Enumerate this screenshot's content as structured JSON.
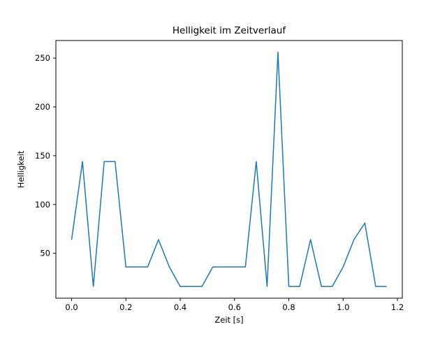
{
  "chart_data": {
    "type": "line",
    "title": "Helligkeit im Zeitverlauf",
    "xlabel": "Zeit [s]",
    "ylabel": "Helligkeit",
    "x": [
      0.0,
      0.04,
      0.08,
      0.12,
      0.16,
      0.2,
      0.24,
      0.28,
      0.32,
      0.36,
      0.4,
      0.44,
      0.48,
      0.52,
      0.56,
      0.6,
      0.64,
      0.68,
      0.72,
      0.76,
      0.8,
      0.84,
      0.88,
      0.92,
      0.96,
      1.0,
      1.04,
      1.08,
      1.12,
      1.16
    ],
    "y": [
      64,
      144,
      16,
      144,
      144,
      36,
      36,
      36,
      64,
      36,
      16,
      16,
      16,
      36,
      36,
      36,
      36,
      144,
      16,
      256,
      16,
      16,
      64,
      16,
      16,
      36,
      64,
      81,
      16,
      16
    ],
    "xticks": [
      0.0,
      0.2,
      0.4,
      0.6,
      0.8,
      1.0,
      1.2
    ],
    "xtick_labels": [
      "0.0",
      "0.2",
      "0.4",
      "0.6",
      "0.8",
      "1.0",
      "1.2"
    ],
    "yticks": [
      50,
      100,
      150,
      200,
      250
    ],
    "ytick_labels": [
      "50",
      "100",
      "150",
      "200",
      "250"
    ],
    "xlim": [
      -0.058,
      1.218
    ],
    "ylim": [
      4,
      268
    ],
    "grid": false,
    "legend": null,
    "line_color": "#1f77b4",
    "line_width": 1.5,
    "background_color": "#ffffff",
    "spine_color": "#000000"
  }
}
